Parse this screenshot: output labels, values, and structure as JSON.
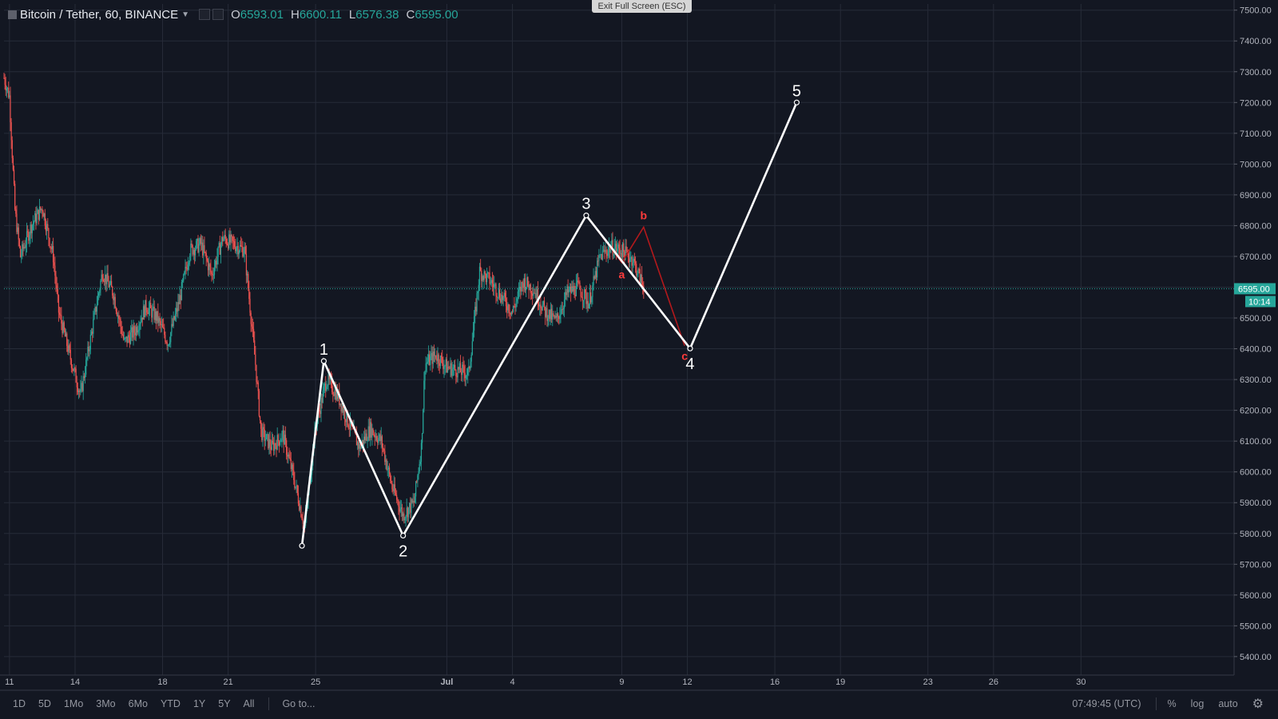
{
  "header": {
    "symbol": "Bitcoin / Tether, 60, BINANCE",
    "o_label": "O",
    "o_value": "6593.01",
    "h_label": "H",
    "h_value": "6600.11",
    "l_label": "L",
    "l_value": "6576.38",
    "c_label": "C",
    "c_value": "6595.00"
  },
  "exit_fullscreen": "Exit Full Screen (ESC)",
  "bottom_bar": {
    "ranges": [
      "1D",
      "5D",
      "1Mo",
      "3Mo",
      "6Mo",
      "YTD",
      "1Y",
      "5Y",
      "All"
    ],
    "goto": "Go to...",
    "time": "07:49:45 (UTC)",
    "percent": "%",
    "log": "log",
    "auto": "auto"
  },
  "colors": {
    "background": "#131722",
    "grid": "#262b38",
    "up": "#26a69a",
    "down": "#ef5350",
    "wave_line": "#ffffff",
    "correction": "#ff3b3b",
    "price_line": "#26a69a"
  },
  "chart_data": {
    "type": "line",
    "title": "Bitcoin / Tether, 60, BINANCE",
    "price_axis": {
      "ylim": [
        5340,
        7520
      ],
      "ticks": [
        "7500.00",
        "7400.00",
        "7300.00",
        "7200.00",
        "7100.00",
        "7000.00",
        "6900.00",
        "6800.00",
        "6700.00",
        "6600.00",
        "6500.00",
        "6400.00",
        "6300.00",
        "6200.00",
        "6100.00",
        "6000.00",
        "5900.00",
        "5800.00",
        "5700.00",
        "5600.00",
        "5500.00",
        "5400.00"
      ]
    },
    "time_axis": {
      "xlim": [
        "2018-06-10 18:00",
        "2018-08-06 00:00"
      ],
      "ticks": [
        {
          "label": "11",
          "t": "2018-06-11"
        },
        {
          "label": "14",
          "t": "2018-06-14"
        },
        {
          "label": "18",
          "t": "2018-06-18"
        },
        {
          "label": "21",
          "t": "2018-06-21"
        },
        {
          "label": "25",
          "t": "2018-06-25"
        },
        {
          "label": "Jul",
          "t": "2018-07-01"
        },
        {
          "label": "4",
          "t": "2018-07-04"
        },
        {
          "label": "9",
          "t": "2018-07-09"
        },
        {
          "label": "12",
          "t": "2018-07-12"
        },
        {
          "label": "16",
          "t": "2018-07-16"
        },
        {
          "label": "19",
          "t": "2018-07-19"
        },
        {
          "label": "23",
          "t": "2018-07-23"
        },
        {
          "label": "26",
          "t": "2018-07-26"
        },
        {
          "label": "30",
          "t": "2018-07-30"
        }
      ]
    },
    "grid": true,
    "last_price": {
      "value": 6595.0,
      "label": "6595.00",
      "countdown": "10:14"
    },
    "price_path": [
      {
        "t": "2018-06-10 18:00",
        "p": 7280
      },
      {
        "t": "2018-06-11 00:00",
        "p": 7220
      },
      {
        "t": "2018-06-11 06:00",
        "p": 6850
      },
      {
        "t": "2018-06-11 12:00",
        "p": 6700
      },
      {
        "t": "2018-06-12 00:00",
        "p": 6800
      },
      {
        "t": "2018-06-12 12:00",
        "p": 6860
      },
      {
        "t": "2018-06-13 00:00",
        "p": 6700
      },
      {
        "t": "2018-06-13 06:00",
        "p": 6520
      },
      {
        "t": "2018-06-13 18:00",
        "p": 6380
      },
      {
        "t": "2018-06-14 06:00",
        "p": 6250
      },
      {
        "t": "2018-06-14 18:00",
        "p": 6450
      },
      {
        "t": "2018-06-15 06:00",
        "p": 6650
      },
      {
        "t": "2018-06-15 18:00",
        "p": 6580
      },
      {
        "t": "2018-06-16 06:00",
        "p": 6420
      },
      {
        "t": "2018-06-16 18:00",
        "p": 6460
      },
      {
        "t": "2018-06-17 06:00",
        "p": 6540
      },
      {
        "t": "2018-06-17 18:00",
        "p": 6500
      },
      {
        "t": "2018-06-18 06:00",
        "p": 6420
      },
      {
        "t": "2018-06-18 18:00",
        "p": 6550
      },
      {
        "t": "2018-06-19 06:00",
        "p": 6720
      },
      {
        "t": "2018-06-19 18:00",
        "p": 6740
      },
      {
        "t": "2018-06-20 06:00",
        "p": 6640
      },
      {
        "t": "2018-06-20 18:00",
        "p": 6760
      },
      {
        "t": "2018-06-21 06:00",
        "p": 6740
      },
      {
        "t": "2018-06-21 18:00",
        "p": 6720
      },
      {
        "t": "2018-06-22 06:00",
        "p": 6350
      },
      {
        "t": "2018-06-22 12:00",
        "p": 6130
      },
      {
        "t": "2018-06-23 00:00",
        "p": 6080
      },
      {
        "t": "2018-06-23 12:00",
        "p": 6120
      },
      {
        "t": "2018-06-24 00:00",
        "p": 5980
      },
      {
        "t": "2018-06-24 12:00",
        "p": 5820
      },
      {
        "t": "2018-06-25 00:00",
        "p": 6150
      },
      {
        "t": "2018-06-25 12:00",
        "p": 6300
      },
      {
        "t": "2018-06-26 00:00",
        "p": 6250
      },
      {
        "t": "2018-06-26 12:00",
        "p": 6160
      },
      {
        "t": "2018-06-27 00:00",
        "p": 6080
      },
      {
        "t": "2018-06-27 12:00",
        "p": 6140
      },
      {
        "t": "2018-06-28 00:00",
        "p": 6100
      },
      {
        "t": "2018-06-28 12:00",
        "p": 5950
      },
      {
        "t": "2018-06-29 00:00",
        "p": 5860
      },
      {
        "t": "2018-06-29 12:00",
        "p": 5900
      },
      {
        "t": "2018-06-29 20:00",
        "p": 6080
      },
      {
        "t": "2018-06-30 00:00",
        "p": 6350
      },
      {
        "t": "2018-06-30 12:00",
        "p": 6380
      },
      {
        "t": "2018-07-01 00:00",
        "p": 6340
      },
      {
        "t": "2018-07-01 12:00",
        "p": 6330
      },
      {
        "t": "2018-07-02 00:00",
        "p": 6320
      },
      {
        "t": "2018-07-02 12:00",
        "p": 6650
      },
      {
        "t": "2018-07-03 00:00",
        "p": 6620
      },
      {
        "t": "2018-07-03 12:00",
        "p": 6570
      },
      {
        "t": "2018-07-04 00:00",
        "p": 6520
      },
      {
        "t": "2018-07-04 12:00",
        "p": 6620
      },
      {
        "t": "2018-07-05 00:00",
        "p": 6590
      },
      {
        "t": "2018-07-05 12:00",
        "p": 6520
      },
      {
        "t": "2018-07-06 00:00",
        "p": 6490
      },
      {
        "t": "2018-07-06 12:00",
        "p": 6580
      },
      {
        "t": "2018-07-07 00:00",
        "p": 6600
      },
      {
        "t": "2018-07-07 12:00",
        "p": 6550
      },
      {
        "t": "2018-07-08 00:00",
        "p": 6700
      },
      {
        "t": "2018-07-08 12:00",
        "p": 6730
      },
      {
        "t": "2018-07-09 00:00",
        "p": 6720
      },
      {
        "t": "2018-07-09 12:00",
        "p": 6690
      },
      {
        "t": "2018-07-10 00:00",
        "p": 6600
      }
    ],
    "annotations": {
      "impulse_wave": [
        {
          "label": "1",
          "t": "2018-06-25 09:00",
          "p": 6360
        },
        {
          "label": "2",
          "t": "2018-06-29 00:00",
          "p": 5793
        },
        {
          "label": "3",
          "t": "2018-07-07 09:00",
          "p": 6833
        },
        {
          "label": "4",
          "t": "2018-07-12 03:00",
          "p": 6401
        },
        {
          "label": "5",
          "t": "2018-07-17 00:00",
          "p": 7200
        }
      ],
      "wave_start": {
        "t": "2018-06-24 09:00",
        "p": 5760
      },
      "correction_wave": [
        {
          "label": "a",
          "t": "2018-07-09 00:00",
          "p": 6680
        },
        {
          "label": "b",
          "t": "2018-07-10 00:00",
          "p": 6795
        },
        {
          "label": "c",
          "t": "2018-07-11 21:00",
          "p": 6410
        }
      ]
    }
  }
}
